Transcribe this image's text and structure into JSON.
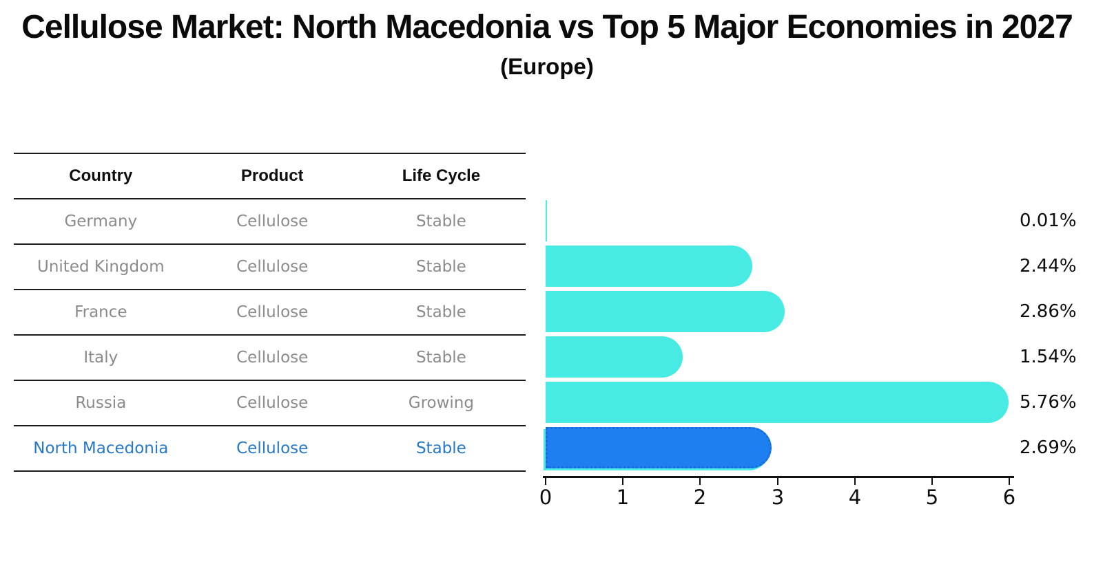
{
  "title": "Cellulose Market: North Macedonia vs Top 5 Major Economies in 2027",
  "subtitle": "(Europe)",
  "table": {
    "headers": [
      "Country",
      "Product",
      "Life Cycle"
    ],
    "rows": [
      {
        "country": "Germany",
        "product": "Cellulose",
        "life_cycle": "Stable"
      },
      {
        "country": "United Kingdom",
        "product": "Cellulose",
        "life_cycle": "Stable"
      },
      {
        "country": "France",
        "product": "Cellulose",
        "life_cycle": "Stable"
      },
      {
        "country": "Italy",
        "product": "Cellulose",
        "life_cycle": "Stable"
      },
      {
        "country": "Russia",
        "product": "Cellulose",
        "life_cycle": "Growing"
      },
      {
        "country": "North Macedonia",
        "product": "Cellulose",
        "life_cycle": "Stable"
      }
    ]
  },
  "chart_data": {
    "type": "bar",
    "orientation": "horizontal",
    "title": "Cellulose Market: North Macedonia vs Top 5 Major Economies in 2027",
    "subtitle": "(Europe)",
    "categories": [
      "Germany",
      "United Kingdom",
      "France",
      "Italy",
      "Russia",
      "North Macedonia"
    ],
    "values": [
      0.01,
      2.44,
      2.86,
      1.54,
      5.76,
      2.69
    ],
    "value_labels": [
      "0.01%",
      "2.44%",
      "2.86%",
      "1.54%",
      "5.76%",
      "2.69%"
    ],
    "x_ticks": [
      "0",
      "1",
      "2",
      "3",
      "4",
      "5",
      "6"
    ],
    "xlim": [
      0,
      6
    ],
    "grid": false,
    "legend": false,
    "bar_colors": [
      "#47ebe4",
      "#47ebe4",
      "#47ebe4",
      "#47ebe4",
      "#47ebe4",
      "#1e80f0"
    ],
    "highlight_index": 5,
    "highlight_border_color": "#186bdd",
    "highlight_underlay_color": "#47ebe4",
    "highlight_text_color": "#2878c8",
    "axis_color": "#111111",
    "label_color": "#0d0d0d",
    "row_text_color": "#8b8b8b"
  }
}
